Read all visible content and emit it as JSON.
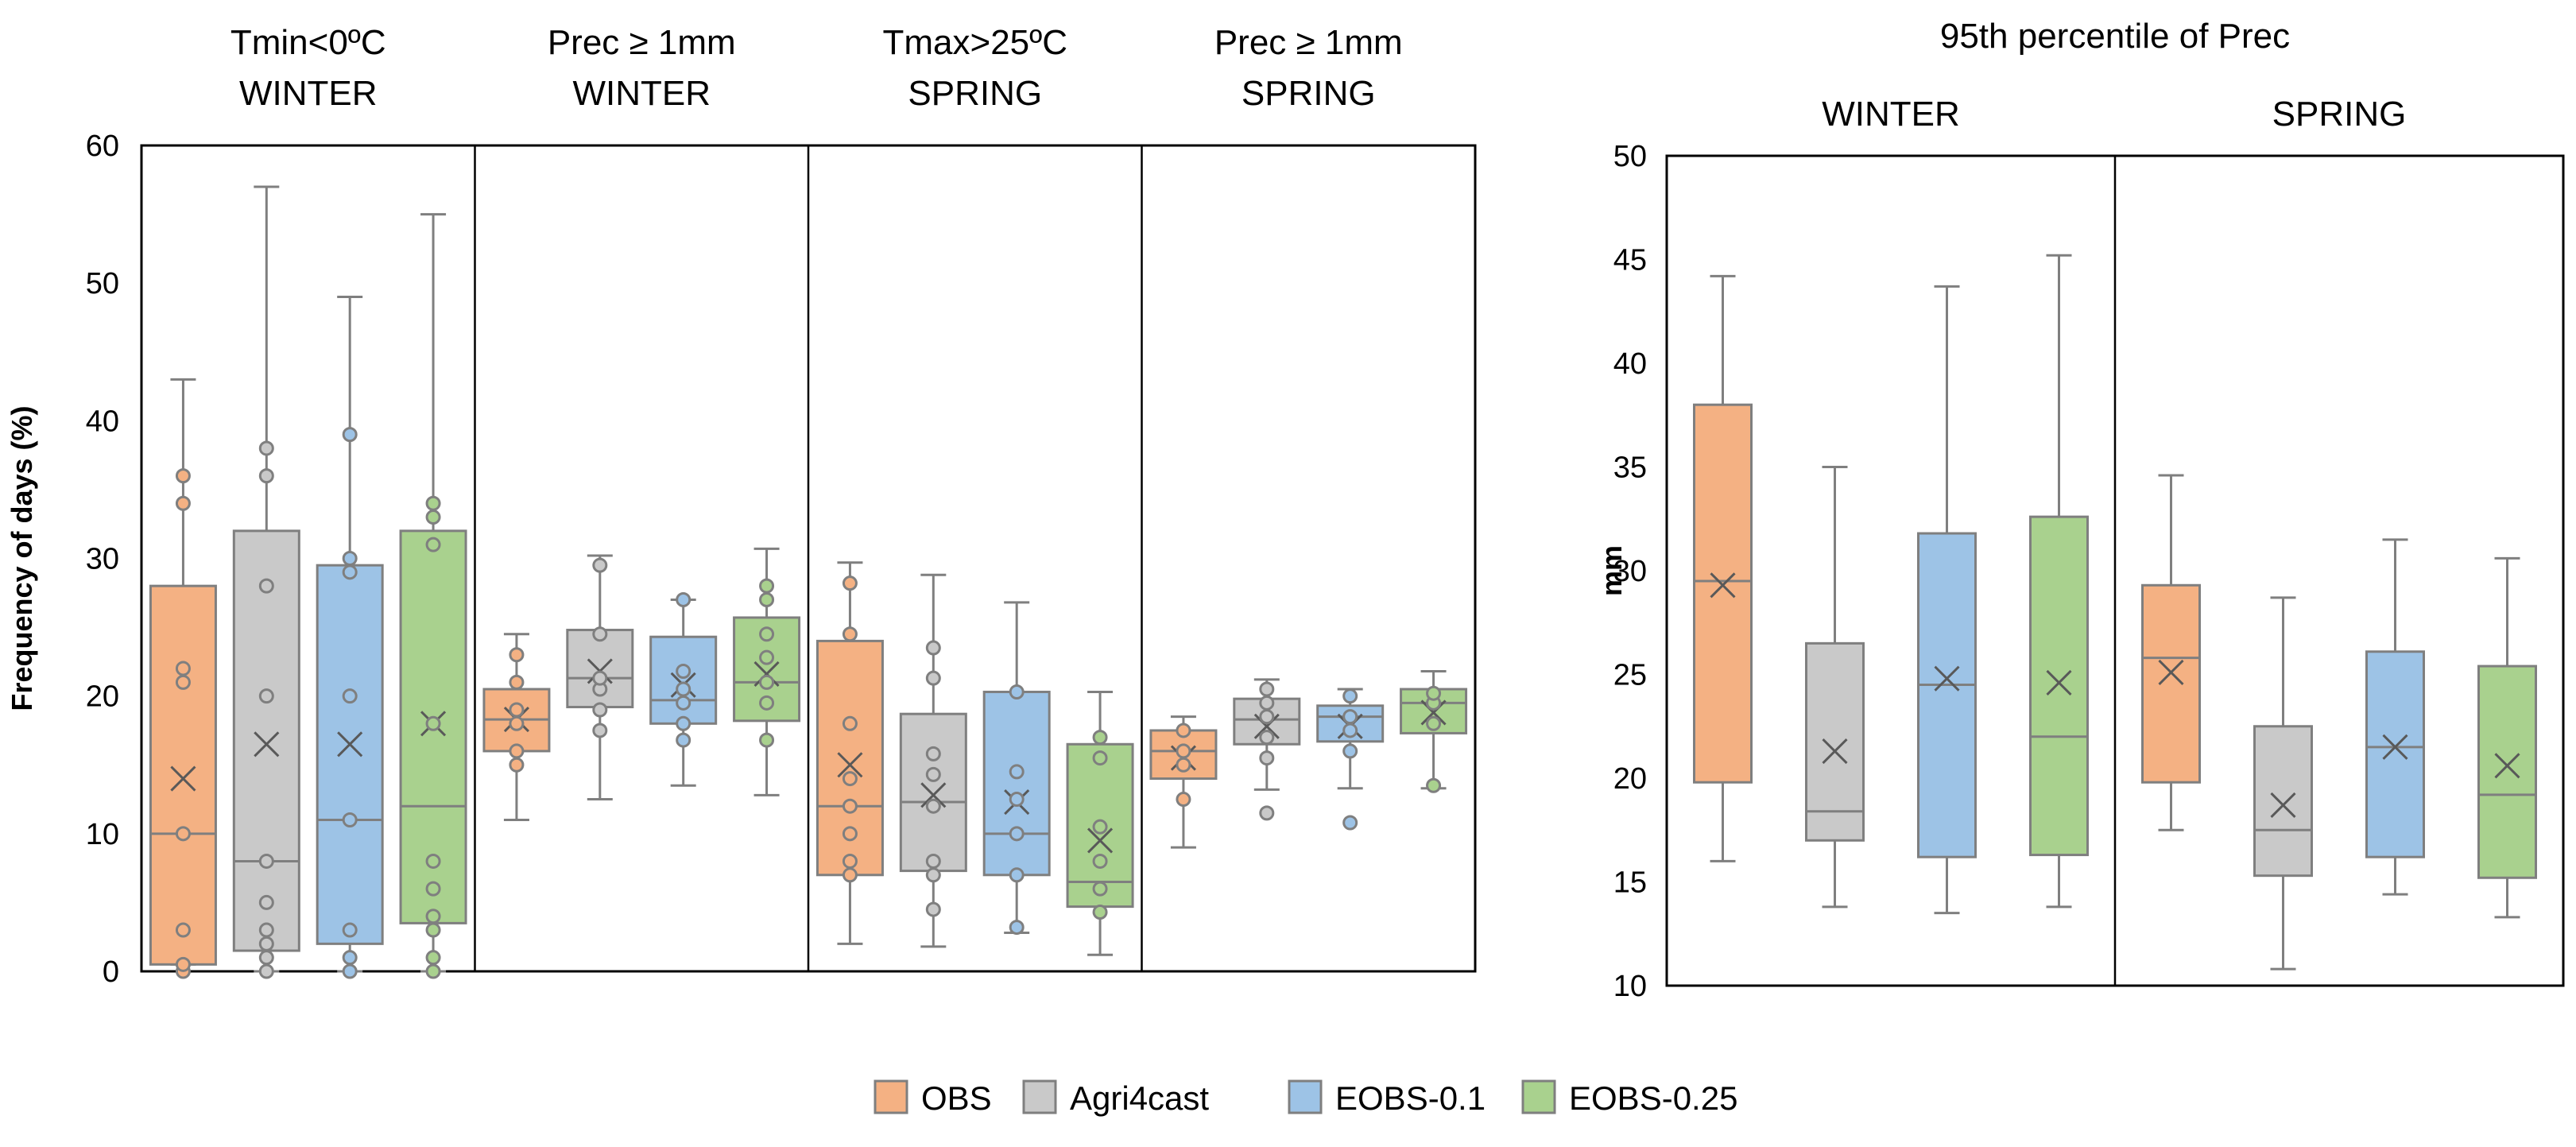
{
  "colors": {
    "OBS": "#F4B183",
    "Agri4cast": "#C9C9C9",
    "EOBS-0.1": "#9DC3E6",
    "EOBS-0.25": "#A9D18E",
    "outline": "#7F7F7F",
    "frame": "#000000"
  },
  "legend": {
    "items": [
      {
        "label": "OBS",
        "color": "#F4B183"
      },
      {
        "label": "Agri4cast",
        "color": "#C9C9C9"
      },
      {
        "label": "EOBS-0.1",
        "color": "#9DC3E6"
      },
      {
        "label": "EOBS-0.25",
        "color": "#A9D18E"
      }
    ],
    "placement": "bottom-center"
  },
  "chart_data": [
    {
      "type": "box",
      "title": "",
      "ylabel": "Frequency of days (%)",
      "ylim": [
        0,
        60
      ],
      "yticks": [
        0,
        10,
        20,
        30,
        40,
        50,
        60
      ],
      "grid": false,
      "groups": [
        {
          "title_lines": [
            "Tmin<0ºC",
            "WINTER"
          ],
          "boxes": [
            {
              "series": "OBS",
              "min": 0.5,
              "q1": 0.5,
              "median": 10,
              "q3": 28,
              "max": 43,
              "mean": 14,
              "points": [
                0,
                0.5,
                3,
                10,
                21,
                22,
                34,
                36
              ]
            },
            {
              "series": "Agri4cast",
              "min": 0,
              "q1": 1.5,
              "median": 8,
              "q3": 32,
              "max": 57,
              "mean": 16.5,
              "points": [
                0,
                1,
                2,
                3,
                5,
                8,
                20,
                28,
                36,
                38
              ]
            },
            {
              "series": "EOBS-0.1",
              "min": 0,
              "q1": 2,
              "median": 11,
              "q3": 29.5,
              "max": 49,
              "mean": 16.5,
              "points": [
                0,
                1,
                3,
                11,
                20,
                29,
                30,
                39
              ]
            },
            {
              "series": "EOBS-0.25",
              "min": 0,
              "q1": 3.5,
              "median": 12,
              "q3": 32,
              "max": 55,
              "mean": 18,
              "points": [
                0,
                1,
                3,
                4,
                6,
                8,
                18,
                31,
                33,
                34
              ]
            }
          ]
        },
        {
          "title_lines": [
            "Prec ≥ 1mm",
            "WINTER"
          ],
          "boxes": [
            {
              "series": "OBS",
              "min": 11,
              "q1": 16,
              "median": 18.3,
              "q3": 20.5,
              "max": 24.5,
              "mean": 18.3,
              "points": [
                15,
                16,
                18,
                19,
                21,
                23
              ]
            },
            {
              "series": "Agri4cast",
              "min": 12.5,
              "q1": 19.2,
              "median": 21.3,
              "q3": 24.8,
              "max": 30.2,
              "mean": 21.8,
              "points": [
                17.5,
                19,
                20.5,
                21.3,
                24.5,
                29.5
              ]
            },
            {
              "series": "EOBS-0.1",
              "min": 13.5,
              "q1": 18,
              "median": 19.7,
              "q3": 24.3,
              "max": 27,
              "mean": 20.8,
              "points": [
                16.8,
                18,
                19.5,
                20.5,
                21.8,
                27
              ]
            },
            {
              "series": "EOBS-0.25",
              "min": 12.8,
              "q1": 18.2,
              "median": 21,
              "q3": 25.7,
              "max": 30.7,
              "mean": 21.6,
              "points": [
                16.8,
                19.5,
                21,
                22.8,
                24.5,
                27,
                28
              ]
            }
          ]
        },
        {
          "title_lines": [
            "Tmax>25ºC",
            "SPRING"
          ],
          "boxes": [
            {
              "series": "OBS",
              "min": 2,
              "q1": 7,
              "median": 12,
              "q3": 24,
              "max": 29.7,
              "mean": 15,
              "points": [
                7,
                8,
                10,
                12,
                14,
                18,
                24.5,
                28.2
              ]
            },
            {
              "series": "Agri4cast",
              "min": 1.8,
              "q1": 7.3,
              "median": 12.3,
              "q3": 18.7,
              "max": 28.8,
              "mean": 12.8,
              "points": [
                4.5,
                7,
                8,
                12,
                14.3,
                15.8,
                21.3,
                23.5
              ]
            },
            {
              "series": "EOBS-0.1",
              "min": 2.8,
              "q1": 7,
              "median": 10,
              "q3": 20.3,
              "max": 26.8,
              "mean": 12.3,
              "points": [
                3.2,
                7,
                10,
                12.5,
                14.5,
                20.3
              ]
            },
            {
              "series": "EOBS-0.25",
              "min": 1.2,
              "q1": 4.7,
              "median": 6.5,
              "q3": 16.5,
              "max": 20.3,
              "mean": 9.5,
              "points": [
                4.3,
                6,
                8,
                10.5,
                15.5,
                17
              ]
            }
          ]
        },
        {
          "title_lines": [
            "Prec ≥ 1mm",
            "SPRING"
          ],
          "boxes": [
            {
              "series": "OBS",
              "min": 9,
              "q1": 14,
              "median": 16,
              "q3": 17.5,
              "max": 18.5,
              "mean": 15.5,
              "points": [
                12.5,
                15,
                16,
                17.5
              ]
            },
            {
              "series": "Agri4cast",
              "min": 13.2,
              "q1": 16.5,
              "median": 18.3,
              "q3": 19.8,
              "max": 21.2,
              "mean": 17.8,
              "points": [
                11.5,
                15.5,
                17,
                18.5,
                19.5,
                20.5
              ]
            },
            {
              "series": "EOBS-0.1",
              "min": 13.3,
              "q1": 16.7,
              "median": 18.5,
              "q3": 19.3,
              "max": 20.5,
              "mean": 17.8,
              "points": [
                10.8,
                16,
                17.5,
                18.5,
                20
              ]
            },
            {
              "series": "EOBS-0.25",
              "min": 13.3,
              "q1": 17.3,
              "median": 19.5,
              "q3": 20.5,
              "max": 21.8,
              "mean": 18.8,
              "points": [
                13.5,
                18,
                19.5,
                20.2
              ]
            }
          ]
        }
      ]
    },
    {
      "type": "box",
      "title": "95th percentile of Prec",
      "ylabel": "mm",
      "ylim": [
        10,
        50
      ],
      "yticks": [
        10,
        15,
        20,
        25,
        30,
        35,
        40,
        45,
        50
      ],
      "grid": false,
      "groups": [
        {
          "title_lines": [
            "WINTER"
          ],
          "boxes": [
            {
              "series": "OBS",
              "min": 16,
              "q1": 19.8,
              "median": 29.5,
              "q3": 38,
              "max": 44.2,
              "mean": 29.3,
              "points": []
            },
            {
              "series": "Agri4cast",
              "min": 13.8,
              "q1": 17,
              "median": 18.4,
              "q3": 26.5,
              "max": 35,
              "mean": 21.3,
              "points": []
            },
            {
              "series": "EOBS-0.1",
              "min": 13.5,
              "q1": 16.2,
              "median": 24.5,
              "q3": 31.8,
              "max": 43.7,
              "mean": 24.8,
              "points": []
            },
            {
              "series": "EOBS-0.25",
              "min": 13.8,
              "q1": 16.3,
              "median": 22,
              "q3": 32.6,
              "max": 45.2,
              "mean": 24.6,
              "points": []
            }
          ]
        },
        {
          "title_lines": [
            "SPRING"
          ],
          "boxes": [
            {
              "series": "OBS",
              "min": 17.5,
              "q1": 19.8,
              "median": 25.8,
              "q3": 29.3,
              "max": 34.6,
              "mean": 25.1,
              "points": []
            },
            {
              "series": "Agri4cast",
              "min": 10.8,
              "q1": 15.3,
              "median": 17.5,
              "q3": 22.5,
              "max": 28.7,
              "mean": 18.7,
              "points": []
            },
            {
              "series": "EOBS-0.1",
              "min": 14.4,
              "q1": 16.2,
              "median": 21.5,
              "q3": 26.1,
              "max": 31.5,
              "mean": 21.5,
              "points": []
            },
            {
              "series": "EOBS-0.25",
              "min": 13.3,
              "q1": 15.2,
              "median": 19.2,
              "q3": 25.4,
              "max": 30.6,
              "mean": 20.6,
              "points": []
            }
          ]
        }
      ]
    }
  ]
}
